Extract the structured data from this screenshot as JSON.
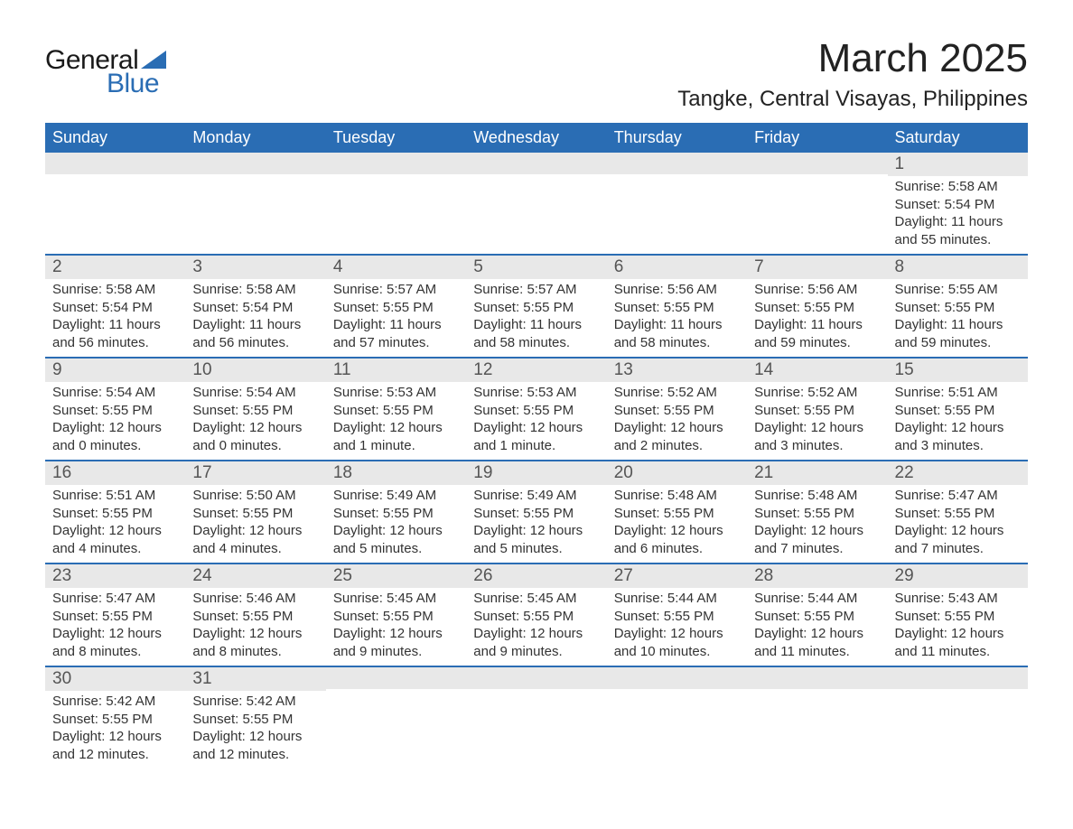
{
  "logo": {
    "text_general": "General",
    "text_blue": "Blue",
    "triangle_color": "#2a6db4"
  },
  "title": "March 2025",
  "location": "Tangke, Central Visayas, Philippines",
  "colors": {
    "header_bg": "#2a6db4",
    "header_text": "#ffffff",
    "daynum_bg": "#e8e8e8",
    "row_separator": "#2a6db4",
    "body_text": "#333333",
    "page_bg": "#ffffff"
  },
  "typography": {
    "title_fontsize": 44,
    "location_fontsize": 24,
    "header_fontsize": 18,
    "daynum_fontsize": 19,
    "data_fontsize": 15,
    "font_family": "Arial"
  },
  "weekdays": [
    "Sunday",
    "Monday",
    "Tuesday",
    "Wednesday",
    "Thursday",
    "Friday",
    "Saturday"
  ],
  "weeks": [
    [
      null,
      null,
      null,
      null,
      null,
      null,
      {
        "day": "1",
        "sunrise": "Sunrise: 5:58 AM",
        "sunset": "Sunset: 5:54 PM",
        "daylight1": "Daylight: 11 hours",
        "daylight2": "and 55 minutes."
      }
    ],
    [
      {
        "day": "2",
        "sunrise": "Sunrise: 5:58 AM",
        "sunset": "Sunset: 5:54 PM",
        "daylight1": "Daylight: 11 hours",
        "daylight2": "and 56 minutes."
      },
      {
        "day": "3",
        "sunrise": "Sunrise: 5:58 AM",
        "sunset": "Sunset: 5:54 PM",
        "daylight1": "Daylight: 11 hours",
        "daylight2": "and 56 minutes."
      },
      {
        "day": "4",
        "sunrise": "Sunrise: 5:57 AM",
        "sunset": "Sunset: 5:55 PM",
        "daylight1": "Daylight: 11 hours",
        "daylight2": "and 57 minutes."
      },
      {
        "day": "5",
        "sunrise": "Sunrise: 5:57 AM",
        "sunset": "Sunset: 5:55 PM",
        "daylight1": "Daylight: 11 hours",
        "daylight2": "and 58 minutes."
      },
      {
        "day": "6",
        "sunrise": "Sunrise: 5:56 AM",
        "sunset": "Sunset: 5:55 PM",
        "daylight1": "Daylight: 11 hours",
        "daylight2": "and 58 minutes."
      },
      {
        "day": "7",
        "sunrise": "Sunrise: 5:56 AM",
        "sunset": "Sunset: 5:55 PM",
        "daylight1": "Daylight: 11 hours",
        "daylight2": "and 59 minutes."
      },
      {
        "day": "8",
        "sunrise": "Sunrise: 5:55 AM",
        "sunset": "Sunset: 5:55 PM",
        "daylight1": "Daylight: 11 hours",
        "daylight2": "and 59 minutes."
      }
    ],
    [
      {
        "day": "9",
        "sunrise": "Sunrise: 5:54 AM",
        "sunset": "Sunset: 5:55 PM",
        "daylight1": "Daylight: 12 hours",
        "daylight2": "and 0 minutes."
      },
      {
        "day": "10",
        "sunrise": "Sunrise: 5:54 AM",
        "sunset": "Sunset: 5:55 PM",
        "daylight1": "Daylight: 12 hours",
        "daylight2": "and 0 minutes."
      },
      {
        "day": "11",
        "sunrise": "Sunrise: 5:53 AM",
        "sunset": "Sunset: 5:55 PM",
        "daylight1": "Daylight: 12 hours",
        "daylight2": "and 1 minute."
      },
      {
        "day": "12",
        "sunrise": "Sunrise: 5:53 AM",
        "sunset": "Sunset: 5:55 PM",
        "daylight1": "Daylight: 12 hours",
        "daylight2": "and 1 minute."
      },
      {
        "day": "13",
        "sunrise": "Sunrise: 5:52 AM",
        "sunset": "Sunset: 5:55 PM",
        "daylight1": "Daylight: 12 hours",
        "daylight2": "and 2 minutes."
      },
      {
        "day": "14",
        "sunrise": "Sunrise: 5:52 AM",
        "sunset": "Sunset: 5:55 PM",
        "daylight1": "Daylight: 12 hours",
        "daylight2": "and 3 minutes."
      },
      {
        "day": "15",
        "sunrise": "Sunrise: 5:51 AM",
        "sunset": "Sunset: 5:55 PM",
        "daylight1": "Daylight: 12 hours",
        "daylight2": "and 3 minutes."
      }
    ],
    [
      {
        "day": "16",
        "sunrise": "Sunrise: 5:51 AM",
        "sunset": "Sunset: 5:55 PM",
        "daylight1": "Daylight: 12 hours",
        "daylight2": "and 4 minutes."
      },
      {
        "day": "17",
        "sunrise": "Sunrise: 5:50 AM",
        "sunset": "Sunset: 5:55 PM",
        "daylight1": "Daylight: 12 hours",
        "daylight2": "and 4 minutes."
      },
      {
        "day": "18",
        "sunrise": "Sunrise: 5:49 AM",
        "sunset": "Sunset: 5:55 PM",
        "daylight1": "Daylight: 12 hours",
        "daylight2": "and 5 minutes."
      },
      {
        "day": "19",
        "sunrise": "Sunrise: 5:49 AM",
        "sunset": "Sunset: 5:55 PM",
        "daylight1": "Daylight: 12 hours",
        "daylight2": "and 5 minutes."
      },
      {
        "day": "20",
        "sunrise": "Sunrise: 5:48 AM",
        "sunset": "Sunset: 5:55 PM",
        "daylight1": "Daylight: 12 hours",
        "daylight2": "and 6 minutes."
      },
      {
        "day": "21",
        "sunrise": "Sunrise: 5:48 AM",
        "sunset": "Sunset: 5:55 PM",
        "daylight1": "Daylight: 12 hours",
        "daylight2": "and 7 minutes."
      },
      {
        "day": "22",
        "sunrise": "Sunrise: 5:47 AM",
        "sunset": "Sunset: 5:55 PM",
        "daylight1": "Daylight: 12 hours",
        "daylight2": "and 7 minutes."
      }
    ],
    [
      {
        "day": "23",
        "sunrise": "Sunrise: 5:47 AM",
        "sunset": "Sunset: 5:55 PM",
        "daylight1": "Daylight: 12 hours",
        "daylight2": "and 8 minutes."
      },
      {
        "day": "24",
        "sunrise": "Sunrise: 5:46 AM",
        "sunset": "Sunset: 5:55 PM",
        "daylight1": "Daylight: 12 hours",
        "daylight2": "and 8 minutes."
      },
      {
        "day": "25",
        "sunrise": "Sunrise: 5:45 AM",
        "sunset": "Sunset: 5:55 PM",
        "daylight1": "Daylight: 12 hours",
        "daylight2": "and 9 minutes."
      },
      {
        "day": "26",
        "sunrise": "Sunrise: 5:45 AM",
        "sunset": "Sunset: 5:55 PM",
        "daylight1": "Daylight: 12 hours",
        "daylight2": "and 9 minutes."
      },
      {
        "day": "27",
        "sunrise": "Sunrise: 5:44 AM",
        "sunset": "Sunset: 5:55 PM",
        "daylight1": "Daylight: 12 hours",
        "daylight2": "and 10 minutes."
      },
      {
        "day": "28",
        "sunrise": "Sunrise: 5:44 AM",
        "sunset": "Sunset: 5:55 PM",
        "daylight1": "Daylight: 12 hours",
        "daylight2": "and 11 minutes."
      },
      {
        "day": "29",
        "sunrise": "Sunrise: 5:43 AM",
        "sunset": "Sunset: 5:55 PM",
        "daylight1": "Daylight: 12 hours",
        "daylight2": "and 11 minutes."
      }
    ],
    [
      {
        "day": "30",
        "sunrise": "Sunrise: 5:42 AM",
        "sunset": "Sunset: 5:55 PM",
        "daylight1": "Daylight: 12 hours",
        "daylight2": "and 12 minutes."
      },
      {
        "day": "31",
        "sunrise": "Sunrise: 5:42 AM",
        "sunset": "Sunset: 5:55 PM",
        "daylight1": "Daylight: 12 hours",
        "daylight2": "and 12 minutes."
      },
      null,
      null,
      null,
      null,
      null
    ]
  ]
}
